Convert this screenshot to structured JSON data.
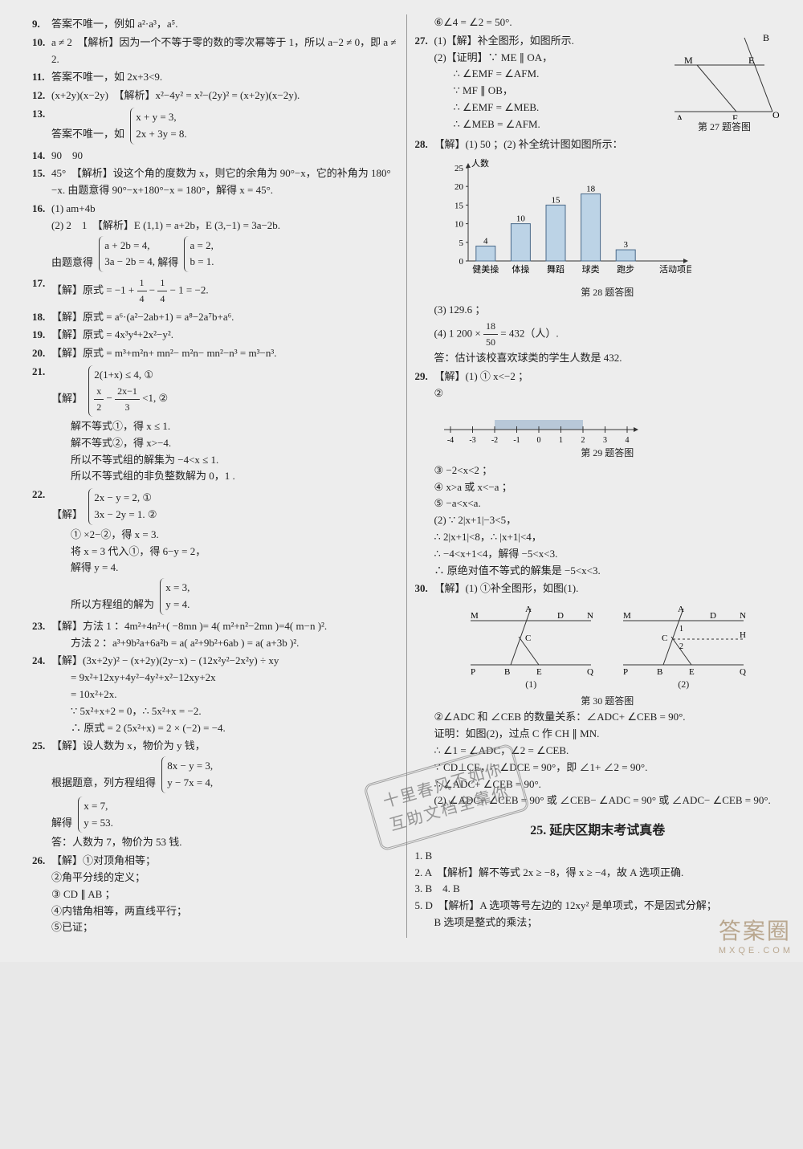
{
  "left": {
    "p9": {
      "num": "9.",
      "text": "答案不唯一，例如 a²·a³，a⁵."
    },
    "p10": {
      "num": "10.",
      "text": "a ≠ 2　【解析】因为一个不等于零的数的零次幂等于 1，所以 a−2 ≠ 0，即 a ≠ 2."
    },
    "p11": {
      "num": "11.",
      "text": "答案不唯一，如 2x+3<9."
    },
    "p12": {
      "num": "12.",
      "text": "(x+2y)(x−2y)　【解析】x²−4y² = x²−(2y)² = (x+2y)(x−2y)."
    },
    "p13": {
      "num": "13.",
      "lead": "答案不唯一，如",
      "l1": "x + y = 3,",
      "l2": "2x + 3y = 8."
    },
    "p14": {
      "num": "14.",
      "text": "90　90"
    },
    "p15": {
      "num": "15.",
      "text": "45°　【解析】设这个角的度数为 x，则它的余角为 90°−x，它的补角为 180°−x. 由题意得 90°−x+180°−x = 180°，解得 x = 45°."
    },
    "p16": {
      "num": "16.",
      "l1": "(1) am+4b",
      "l2": "(2) 2　1　【解析】E (1,1) = a+2b，E (3,−1) = 3a−2b.",
      "lead3": "由题意得",
      "b1": "a + 2b = 4,",
      "b2": "3a − 2b = 4,",
      "mid": "解得",
      "c1": "a = 2,",
      "c2": "b = 1."
    },
    "p17": {
      "num": "17.",
      "lead": "【解】原式 = −1 +",
      "fn1": "1",
      "fd1": "4",
      "mid": "−",
      "fn2": "1",
      "fd2": "4",
      "tail": "− 1 = −2."
    },
    "p18": {
      "num": "18.",
      "text": "【解】原式 = a⁶·(a²−2ab+1) = a⁸−2a⁷b+a⁶."
    },
    "p19": {
      "num": "19.",
      "text": "【解】原式 = 4x³y⁴+2x²−y²."
    },
    "p20": {
      "num": "20.",
      "text": "【解】原式 = m³+m²n+ mn²− m²n− mn²−n³ = m³−n³."
    },
    "p21": {
      "num": "21.",
      "lead": "【解】",
      "b1": "2(1+x) ≤ 4, ①",
      "b2a": "x",
      "b2b": "2",
      "b2m": "−",
      "b2c": "2x−1",
      "b2d": "3",
      "b2t": "<1, ②",
      "s1": "解不等式①，得 x ≤ 1.",
      "s2": "解不等式②，得 x>−4.",
      "s3": "所以不等式组的解集为 −4<x ≤ 1.",
      "s4": "所以不等式组的非负整数解为 0，1 ."
    },
    "p22": {
      "num": "22.",
      "lead": "【解】",
      "b1": "2x − y = 2, ①",
      "b2": "3x − 2y = 1. ②",
      "s1": "① ×2−②，得 x = 3.",
      "s2": "将 x = 3 代入①，得 6−y = 2，",
      "s3": "解得 y = 4.",
      "s4": "所以方程组的解为",
      "c1": "x = 3,",
      "c2": "y = 4."
    },
    "p23": {
      "num": "23.",
      "text": "【解】方法 1 ：4m²+4n²+( −8mn )= 4( m²+n²−2mn )=4( m−n )².",
      "t2": "方法 2 ：a³+9b²a+6a²b = a( a²+9b²+6ab ) = a( a+3b )²."
    },
    "p24": {
      "num": "24.",
      "l1": "【解】(3x+2y)² − (x+2y)(2y−x) − (12x²y²−2x²y) ÷ xy",
      "l2": "= 9x²+12xy+4y²−4y²+x²−12xy+2x",
      "l3": "= 10x²+2x.",
      "l4": "∵ 5x²+x+2 = 0，∴ 5x²+x = −2.",
      "l5": "∴ 原式 = 2 (5x²+x) = 2 × (−2) = −4."
    },
    "p25": {
      "num": "25.",
      "l1": "【解】设人数为 x，物价为 y 钱，",
      "l2": "根据题意，列方程组得",
      "b1": "8x − y = 3,",
      "b2": "y − 7x = 4,",
      "l3": "解得",
      "c1": "x = 7,",
      "c2": "y = 53.",
      "l4": "答：人数为 7，物价为 53 钱."
    },
    "p26": {
      "num": "26.",
      "l1": "【解】①对顶角相等；",
      "l2": "②角平分线的定义；",
      "l3": "③ CD ∥ AB ；",
      "l4": "④内错角相等，两直线平行；",
      "l5": "⑤已证；"
    }
  },
  "right": {
    "p26_6": "⑥∠4 = ∠2 = 50°.",
    "p27": {
      "num": "27.",
      "l1": "(1)【解】补全图形，如图所示.",
      "l2": "(2)【证明】∵ ME ∥ OA，",
      "l3": "∴ ∠EMF = ∠AFM.",
      "l4": "∵ MF ∥ OB，",
      "l5": "∴ ∠EMF = ∠MEB.",
      "l6": "∴ ∠MEB = ∠AFM.",
      "figcap": "第 27 题答图",
      "labels": {
        "B": "B",
        "M": "M",
        "E": "E",
        "O": "O",
        "A": "A",
        "F": "F"
      }
    },
    "p28": {
      "num": "28.",
      "l1": "【解】(1) 50 ；(2) 补全统计图如图所示：",
      "chart": {
        "type": "bar",
        "categories": [
          "健美操",
          "体操",
          "舞蹈",
          "球类",
          "跑步"
        ],
        "values": [
          4,
          10,
          15,
          18,
          3
        ],
        "bar_color": "#bcd3e6",
        "bar_border": "#4a6a8a",
        "ylabel": "人数",
        "ylim": [
          0,
          25
        ],
        "ytick_step": 5,
        "grid_color": "#bfbfbf",
        "bg": "#ededed",
        "font_size": 11,
        "xlabel_right": "活动项目"
      },
      "figcap": "第 28 题答图",
      "l3": "(3) 129.6 ；",
      "l4a": "(4) 1 200 ×",
      "fn": "18",
      "fd": "50",
      "l4b": "= 432（人）.",
      "l5": "答：估计该校喜欢球类的学生人数是 432."
    },
    "p29": {
      "num": "29.",
      "l1": "【解】(1) ① x<−2 ；",
      "l2": "②",
      "numline": {
        "ticks": [
          -4,
          -3,
          -2,
          -1,
          0,
          1,
          2,
          3,
          4
        ],
        "shade_from": -2,
        "shade_to": 2,
        "tick_color": "#333",
        "shade_color": "#b8c8d8"
      },
      "figcap": "第 29 题答图",
      "l3": "③ −2<x<2 ；",
      "l4": "④ x>a 或 x<−a ；",
      "l5": "⑤ −a<x<a.",
      "l6": "(2) ∵ 2|x+1|−3<5，",
      "l7": "∴ 2|x+1|<8，∴ |x+1|<4，",
      "l8": "∴ −4<x+1<4，解得 −5<x<3.",
      "l9": "∴ 原绝对值不等式的解集是 −5<x<3."
    },
    "p30": {
      "num": "30.",
      "l1": "【解】(1) ①补全图形，如图(1).",
      "fig": {
        "labels": [
          "M",
          "A",
          "D",
          "N",
          "C",
          "P",
          "B",
          "E",
          "Q",
          "H"
        ],
        "sub1": "(1)",
        "sub2": "(2)"
      },
      "figcap": "第 30 题答图",
      "l2": "②∠ADC 和 ∠CEB 的数量关系：∠ADC+ ∠CEB = 90°.",
      "l3": "证明：如图(2)，过点 C 作 CH ∥ MN.",
      "l4": "∴ ∠1 = ∠ADC，∠2 = ∠CEB.",
      "l5": "∵ CD⊥CE，∴ ∠DCE = 90°，即 ∠1+ ∠2 = 90°.",
      "l6": "∴ ∠ADC+ ∠CEB = 90°.",
      "l7": "(2) ∠ADC+ ∠CEB = 90° 或 ∠CEB− ∠ADC = 90° 或 ∠ADC− ∠CEB = 90°."
    },
    "section25": "25. 延庆区期末考试真卷",
    "s25": {
      "q1": "1. B",
      "q2": "2. A　【解析】解不等式 2x ≥ −8，得 x ≥ −4，故 A 选项正确.",
      "q3": "3. B　4. B",
      "q5a": "5. D　【解析】A 选项等号左边的 12xy² 是单项式，不是因式分解；",
      "q5b": "B 选项是整式的乘法；"
    }
  },
  "stamp": {
    "l1": "十里春风不如你",
    "l2": "互助文档全靠你"
  },
  "watermark": {
    "big": "答案圈",
    "small": "MXQE.COM"
  }
}
